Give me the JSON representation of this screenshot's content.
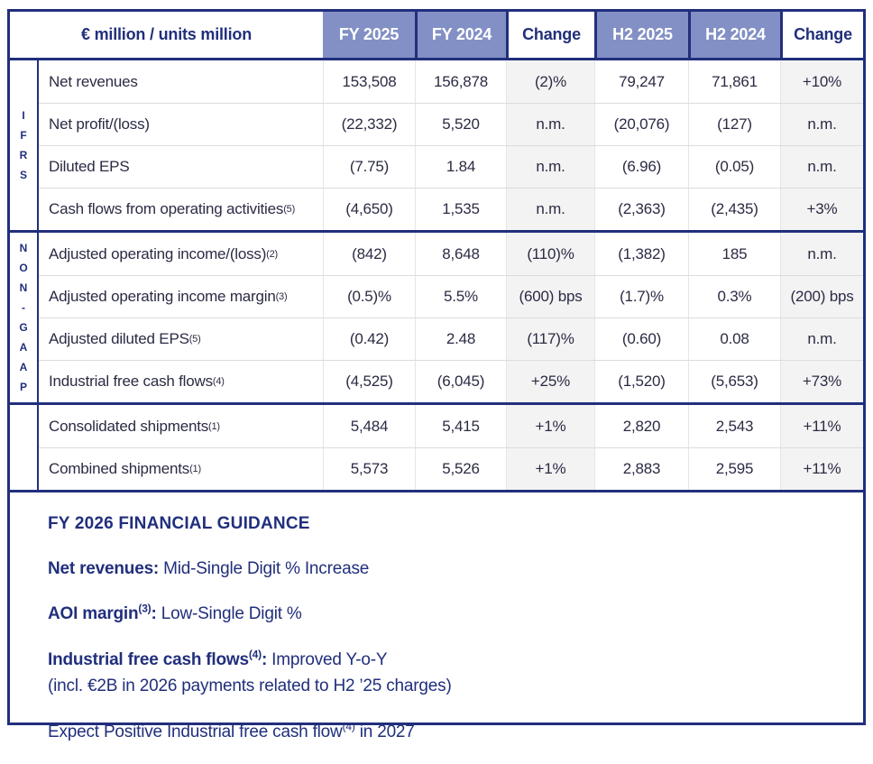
{
  "colors": {
    "navy": "#212f7c",
    "header_blue": "#8290c5",
    "body_text": "#2b2b44",
    "change_column_bg": "#f3f3f3"
  },
  "table": {
    "corner_label": "€ million / units million",
    "columns": [
      {
        "label": "FY 2025",
        "style": "blue"
      },
      {
        "label": "FY 2024",
        "style": "blue"
      },
      {
        "label": "Change",
        "style": "white"
      },
      {
        "label": "H2 2025",
        "style": "blue"
      },
      {
        "label": "H2 2024",
        "style": "blue"
      },
      {
        "label": "Change",
        "style": "white"
      }
    ],
    "sections": [
      {
        "group": "IFRS",
        "rows": [
          {
            "label": "Net revenues",
            "sup": "",
            "values": [
              "153,508",
              "156,878",
              "(2)%",
              "79,247",
              "71,861",
              "+10%"
            ]
          },
          {
            "label": "Net profit/(loss)",
            "sup": "",
            "values": [
              "(22,332)",
              "5,520",
              "n.m.",
              "(20,076)",
              "(127)",
              "n.m."
            ]
          },
          {
            "label": "Diluted EPS",
            "sup": "",
            "values": [
              "(7.75)",
              "1.84",
              "n.m.",
              "(6.96)",
              "(0.05)",
              "n.m."
            ]
          },
          {
            "label": "Cash flows from operating activities",
            "sup": "(5)",
            "values": [
              "(4,650)",
              "1,535",
              "n.m.",
              "(2,363)",
              "(2,435)",
              "+3%"
            ]
          }
        ]
      },
      {
        "group": "NON-GAAP",
        "rows": [
          {
            "label": "Adjusted operating income/(loss)",
            "sup": "(2)",
            "values": [
              "(842)",
              "8,648",
              "(110)%",
              "(1,382)",
              "185",
              "n.m."
            ]
          },
          {
            "label": "Adjusted operating income margin",
            "sup": "(3)",
            "values": [
              "(0.5)%",
              "5.5%",
              "(600) bps",
              "(1.7)%",
              "0.3%",
              "(200) bps"
            ]
          },
          {
            "label": "Adjusted diluted EPS",
            "sup": "(5)",
            "values": [
              "(0.42)",
              "2.48",
              "(117)%",
              "(0.60)",
              "0.08",
              "n.m."
            ]
          },
          {
            "label": "Industrial free cash flows",
            "sup": "(4)",
            "values": [
              "(4,525)",
              "(6,045)",
              "+25%",
              "(1,520)",
              "(5,653)",
              "+73%"
            ]
          }
        ]
      },
      {
        "group": "",
        "rows": [
          {
            "label": "Consolidated shipments",
            "sup": "(1)",
            "values": [
              "5,484",
              "5,415",
              "+1%",
              "2,820",
              "2,543",
              "+11%"
            ]
          },
          {
            "label": "Combined shipments",
            "sup": "(1)",
            "values": [
              "5,573",
              "5,526",
              "+1%",
              "2,883",
              "2,595",
              "+11%"
            ]
          }
        ]
      }
    ]
  },
  "guidance": {
    "title": "FY 2026 FINANCIAL GUIDANCE",
    "lines": [
      {
        "segments": [
          {
            "text": "Net revenues:",
            "bold": true
          },
          {
            "text": " Mid-Single Digit % Increase"
          }
        ]
      },
      {
        "segments": [
          {
            "text": "AOI margin",
            "bold": true
          },
          {
            "text": "(3)",
            "bold": true,
            "sup": true
          },
          {
            "text": ":",
            "bold": true
          },
          {
            "text": " Low-Single Digit %"
          }
        ]
      },
      {
        "segments": [
          {
            "text": "Industrial free cash flows",
            "bold": true
          },
          {
            "text": "(4)",
            "bold": true,
            "sup": true
          },
          {
            "text": ":",
            "bold": true
          },
          {
            "text": " Improved Y-o-Y"
          },
          {
            "break": true
          },
          {
            "text": "(incl. €2B in 2026 payments related to H2 ’25 charges)"
          }
        ]
      },
      {
        "segments": [
          {
            "text": "Expect Positive Industrial free cash flow"
          },
          {
            "text": "(4)",
            "sup": true
          },
          {
            "text": " in 2027"
          }
        ]
      }
    ]
  }
}
